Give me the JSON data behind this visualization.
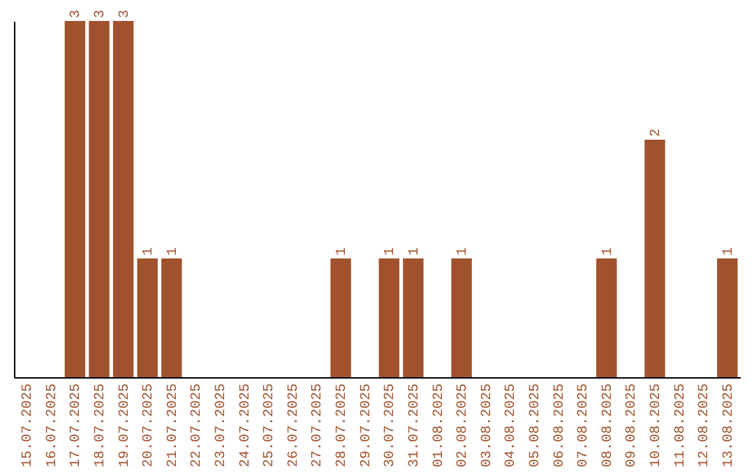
{
  "chart_data": {
    "type": "bar",
    "categories": [
      "15.07.2025",
      "16.07.2025",
      "17.07.2025",
      "18.07.2025",
      "19.07.2025",
      "20.07.2025",
      "21.07.2025",
      "22.07.2025",
      "23.07.2025",
      "24.07.2025",
      "25.07.2025",
      "26.07.2025",
      "27.07.2025",
      "28.07.2025",
      "29.07.2025",
      "30.07.2025",
      "31.07.2025",
      "01.08.2025",
      "02.08.2025",
      "03.08.2025",
      "04.08.2025",
      "05.08.2025",
      "06.08.2025",
      "07.08.2025",
      "08.08.2025",
      "09.08.2025",
      "10.08.2025",
      "11.08.2025",
      "12.08.2025",
      "13.08.2025"
    ],
    "values": [
      0,
      0,
      3,
      3,
      3,
      1,
      1,
      0,
      0,
      0,
      0,
      0,
      0,
      1,
      0,
      1,
      1,
      0,
      1,
      0,
      0,
      0,
      0,
      0,
      1,
      0,
      2,
      0,
      0,
      1
    ],
    "value_labels": [
      null,
      null,
      "3",
      "3",
      "3",
      "1",
      "1",
      null,
      null,
      null,
      null,
      null,
      null,
      "1",
      null,
      "1",
      "1",
      null,
      "1",
      null,
      null,
      null,
      null,
      null,
      "1",
      null,
      "2",
      null,
      null,
      "1"
    ],
    "color": "#a0522d"
  }
}
